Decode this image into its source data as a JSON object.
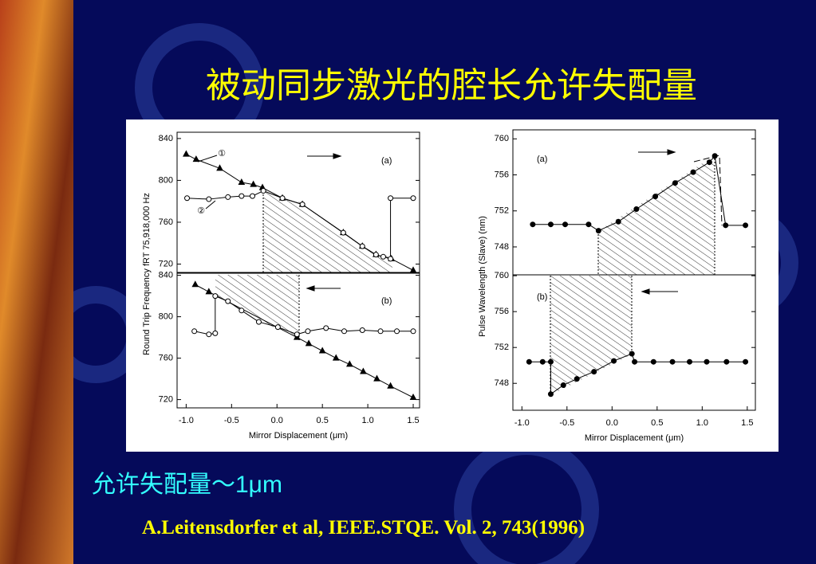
{
  "title": "被动同步激光的腔长允许失配量",
  "subtitle": "允许失配量～1μm",
  "citation": "A.Leitensdorfer et al, IEEE.STQE. Vol. 2, 743(1996)",
  "chart_data": [
    {
      "type": "line",
      "panel_label": "(a)",
      "ylabel": "Round Trip Frequency  fRT  75,918,000 Hz",
      "xlim": [
        -1.1,
        1.57
      ],
      "ylim": [
        712,
        846
      ],
      "yticks": [
        720,
        760,
        800,
        840
      ],
      "series": [
        {
          "name": "①",
          "marker": "triangle",
          "color": "#000000",
          "x": [
            -1.0,
            -0.89,
            -0.63,
            -0.39,
            -0.26,
            -0.16,
            0.06,
            0.28,
            0.73,
            0.94,
            1.09,
            1.26,
            1.5
          ],
          "values": [
            825,
            820,
            811.5,
            798,
            796,
            793,
            783,
            777,
            750,
            737,
            729,
            725,
            714
          ]
        },
        {
          "name": "②",
          "marker": "open-circle",
          "color": "#000000",
          "x": [
            -0.99,
            -0.75,
            -0.54,
            -0.39,
            -0.27,
            -0.15,
            0.06,
            0.28,
            0.73,
            0.94,
            1.09,
            1.17,
            1.25,
            1.25,
            1.5
          ],
          "values": [
            783,
            782,
            784,
            785,
            785,
            790,
            783,
            777,
            750,
            737,
            729,
            727,
            725,
            783,
            783
          ]
        }
      ]
    },
    {
      "type": "line",
      "panel_label": "(b)",
      "xlabel": "Mirror Displacement (μm)",
      "xlim": [
        -1.1,
        1.57
      ],
      "ylim": [
        712,
        842
      ],
      "yticks": [
        720,
        760,
        800,
        840
      ],
      "xticks": [
        {
          "value": -1,
          "label": "-1.0"
        },
        -0.5,
        {
          "value": 0,
          "label": "0.0"
        },
        0.5,
        {
          "value": 1,
          "label": "1.0"
        },
        1.5
      ],
      "series": [
        {
          "marker": "triangle",
          "color": "#000000",
          "x": [
            -0.9,
            -0.75,
            0.22,
            0.35,
            0.5,
            0.65,
            0.8,
            0.95,
            1.1,
            1.25,
            1.5
          ],
          "values": [
            831,
            824,
            780,
            774,
            767,
            760,
            754,
            747,
            740,
            733,
            722
          ]
        },
        {
          "marker": "open-circle",
          "color": "#000000",
          "x": [
            -0.91,
            -0.75,
            -0.68,
            -0.68,
            -0.54,
            -0.39,
            -0.2,
            0.01,
            0.22,
            0.34,
            0.54,
            0.74,
            0.94,
            1.14,
            1.32,
            1.5
          ],
          "values": [
            786,
            783,
            784,
            820,
            815,
            806,
            795,
            790,
            783,
            786,
            789,
            786,
            787,
            786,
            786,
            786
          ]
        }
      ]
    },
    {
      "type": "line",
      "panel_label": "(a)",
      "ylabel": "Pulse Wavelength (Slave) (nm)",
      "xlim": [
        -1.1,
        1.59
      ],
      "ylim": [
        744.9,
        761
      ],
      "yticks": [
        748,
        752,
        756,
        760
      ],
      "series": [
        {
          "marker": "circle",
          "color": "#000000",
          "x": [
            -0.88,
            -0.68,
            -0.52,
            -0.26,
            -0.15,
            0.07,
            0.27,
            0.48,
            0.7,
            0.9,
            1.08,
            1.14,
            1.26,
            1.48
          ],
          "values": [
            750.5,
            750.5,
            750.5,
            750.5,
            749.8,
            750.8,
            752.2,
            753.6,
            755.1,
            756.3,
            757.4,
            758.1,
            750.4,
            750.4
          ]
        }
      ]
    },
    {
      "type": "line",
      "panel_label": "(b)",
      "xlabel": "Mirror Displacement (μm)",
      "xlim": [
        -1.1,
        1.59
      ],
      "ylim": [
        745,
        760.1
      ],
      "yticks": [
        748,
        752,
        756,
        760
      ],
      "xticks": [
        {
          "value": -1,
          "label": "-1.0"
        },
        -0.5,
        {
          "value": 0,
          "label": "0.0"
        },
        0.5,
        {
          "value": 1,
          "label": "1.0"
        },
        1.5
      ],
      "series": [
        {
          "marker": "circle",
          "color": "#000000",
          "x": [
            -0.92,
            -0.77,
            -0.68,
            -0.68,
            -0.54,
            -0.39,
            -0.2,
            0.02,
            0.22,
            0.25,
            0.46,
            0.67,
            0.86,
            1.05,
            1.27,
            1.48
          ],
          "values": [
            750.4,
            750.4,
            750.4,
            746.8,
            747.8,
            748.5,
            749.3,
            750.5,
            751.3,
            750.4,
            750.4,
            750.4,
            750.4,
            750.4,
            750.4,
            750.4
          ]
        }
      ]
    }
  ]
}
